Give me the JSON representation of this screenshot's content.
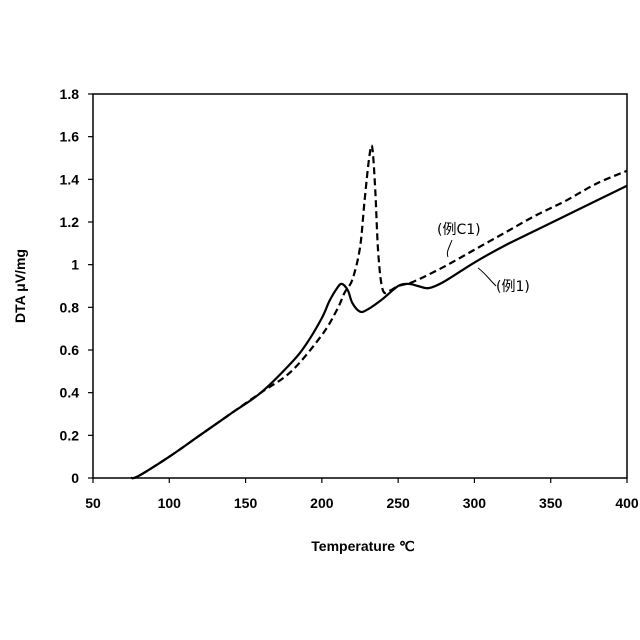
{
  "chart_data": {
    "type": "line",
    "title": "",
    "xlabel": "Temperature ℃",
    "ylabel": "DTA μV/mg",
    "xlim": [
      50,
      400
    ],
    "ylim": [
      0,
      1.8
    ],
    "xticks": [
      "50",
      "100",
      "150",
      "200",
      "250",
      "300",
      "350",
      "400"
    ],
    "yticks": [
      "0",
      "0.2",
      "0.4",
      "0.6",
      "0.8",
      "1",
      "1.2",
      "1.4",
      "1.6",
      "1.8"
    ],
    "grid": false,
    "legend": "none",
    "series": [
      {
        "name": "(例1)",
        "style": "solid",
        "color": "#000000",
        "x": [
          75,
          80,
          100,
          120,
          140,
          160,
          180,
          190,
          200,
          205,
          210,
          213,
          217,
          220,
          225,
          230,
          240,
          250,
          257,
          263,
          270,
          280,
          300,
          320,
          340,
          360,
          380,
          400
        ],
        "y": [
          0,
          0.01,
          0.1,
          0.2,
          0.3,
          0.4,
          0.54,
          0.63,
          0.75,
          0.83,
          0.89,
          0.91,
          0.88,
          0.82,
          0.78,
          0.79,
          0.84,
          0.9,
          0.91,
          0.9,
          0.89,
          0.92,
          1.01,
          1.09,
          1.16,
          1.23,
          1.3,
          1.37
        ]
      },
      {
        "name": "(例C1)",
        "style": "dashed",
        "color": "#000000",
        "x": [
          75,
          80,
          100,
          120,
          140,
          160,
          180,
          200,
          210,
          215,
          220,
          225,
          228,
          231,
          233,
          235,
          237,
          240,
          245,
          250,
          260,
          280,
          300,
          320,
          340,
          360,
          380,
          400
        ],
        "y": [
          0,
          0.01,
          0.1,
          0.2,
          0.3,
          0.4,
          0.5,
          0.67,
          0.79,
          0.87,
          0.93,
          1.08,
          1.3,
          1.5,
          1.55,
          1.35,
          1.05,
          0.88,
          0.88,
          0.9,
          0.92,
          0.99,
          1.07,
          1.15,
          1.23,
          1.3,
          1.38,
          1.44
        ]
      }
    ],
    "annotations": [
      {
        "text": "(例C1)",
        "target": "(例C1)"
      },
      {
        "text": "(例1)",
        "target": "(例1)"
      }
    ]
  }
}
